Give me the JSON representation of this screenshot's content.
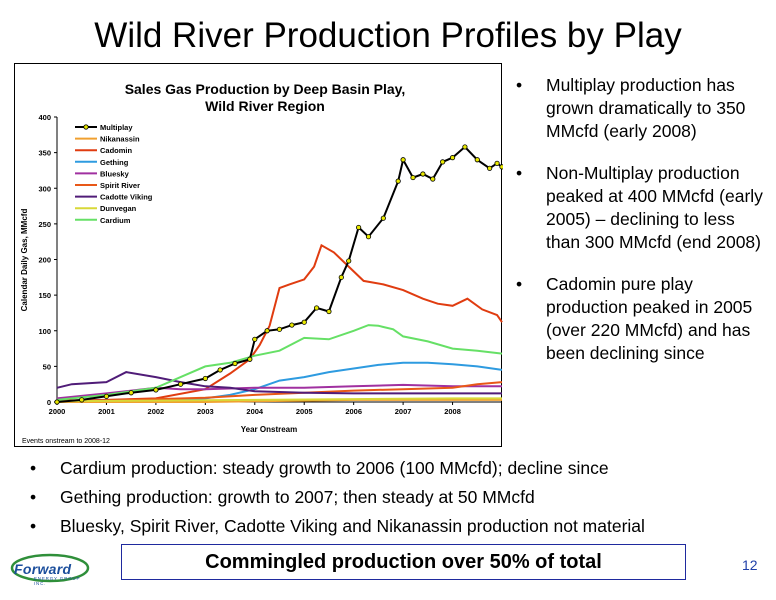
{
  "slide": {
    "title": "Wild River Production Profiles by Play",
    "right_bullets": [
      "Multiplay production has grown dramatically to 350 MMcfd (early 2008)",
      "Non-Multiplay production peaked at 400 MMcfd (early 2005) – declining to less than 300 MMcfd (end 2008)",
      "Cadomin pure play production peaked in 2005  (over 220 MMcfd) and has been declining since"
    ],
    "bottom_bullets": [
      "Cardium production: steady growth to 2006 (100 MMcfd); decline since",
      "Gething production: growth to 2007; then steady at 50 MMcfd",
      "Bluesky, Spirit River, Cadotte Viking and Nikanassin production not material"
    ],
    "callout": "Commingled production over 50% of total",
    "page_number": "12",
    "logo_text": "Forward",
    "logo_subtext": "ENERGY GROUP INC."
  },
  "chart_data": {
    "type": "line",
    "title_line1": "Sales Gas Production by Deep Basin Play,",
    "title_line2": "Wild River Region",
    "xlabel": "Year Onstream",
    "ylabel": "Calendar Daily Gas, MMcfd",
    "footnote": "Events onstream to 2008-12",
    "xlim": [
      2000,
      2009
    ],
    "ylim": [
      0,
      400
    ],
    "yticks": [
      0,
      50,
      100,
      150,
      200,
      250,
      300,
      350,
      400
    ],
    "xtick_labels": [
      "2000",
      "2001",
      "2002",
      "2003",
      "2004",
      "2005",
      "2006",
      "2007",
      "2008"
    ],
    "legend_position": "top-left",
    "series": [
      {
        "name": "Multiplay",
        "color": "#000000",
        "marker": "#e8e800",
        "x": [
          2000,
          2000.5,
          2001,
          2001.5,
          2002,
          2002.5,
          2003,
          2003.3,
          2003.6,
          2003.9,
          2004,
          2004.25,
          2004.5,
          2004.75,
          2005,
          2005.25,
          2005.5,
          2005.75,
          2005.9,
          2006.1,
          2006.3,
          2006.6,
          2006.9,
          2007,
          2007.2,
          2007.4,
          2007.6,
          2007.8,
          2008,
          2008.25,
          2008.5,
          2008.75,
          2008.9,
          2009
        ],
        "y": [
          0,
          3,
          8,
          13,
          17,
          25,
          33,
          45,
          54,
          60,
          88,
          100,
          102,
          108,
          112,
          132,
          127,
          175,
          198,
          245,
          232,
          258,
          310,
          340,
          315,
          320,
          313,
          337,
          343,
          358,
          340,
          328,
          335,
          330
        ]
      },
      {
        "name": "Nikanassin",
        "color": "#f0a030",
        "x": [
          2000,
          2003,
          2004,
          2005,
          2006,
          2007,
          2008,
          2009
        ],
        "y": [
          0,
          0,
          1,
          2,
          3,
          3,
          3,
          3
        ]
      },
      {
        "name": "Cadomin",
        "color": "#e03c10",
        "x": [
          2000,
          2001,
          2002,
          2003,
          2003.5,
          2003.9,
          2004.1,
          2004.3,
          2004.5,
          2004.7,
          2005,
          2005.2,
          2005.35,
          2005.6,
          2005.9,
          2006.2,
          2006.6,
          2007,
          2007.4,
          2007.7,
          2008,
          2008.3,
          2008.6,
          2008.9,
          2009
        ],
        "y": [
          2,
          3,
          5,
          18,
          40,
          60,
          80,
          107,
          160,
          165,
          172,
          190,
          220,
          210,
          190,
          170,
          165,
          157,
          145,
          138,
          135,
          145,
          130,
          122,
          112
        ]
      },
      {
        "name": "Gething",
        "color": "#2e9be0",
        "x": [
          2000,
          2001,
          2002,
          2003,
          2003.5,
          2004,
          2004.5,
          2005,
          2005.5,
          2006,
          2006.5,
          2007,
          2007.5,
          2008,
          2008.5,
          2009
        ],
        "y": [
          1,
          2,
          3,
          5,
          10,
          18,
          30,
          35,
          42,
          47,
          52,
          55,
          55,
          53,
          50,
          45
        ]
      },
      {
        "name": "Bluesky",
        "color": "#a030a0",
        "x": [
          2000,
          2001,
          2002,
          2002.5,
          2003,
          2004,
          2005,
          2006,
          2007,
          2008,
          2009
        ],
        "y": [
          5,
          12,
          20,
          18,
          18,
          20,
          20,
          22,
          24,
          22,
          22
        ]
      },
      {
        "name": "Spirit River",
        "color": "#e85818",
        "x": [
          2000,
          2001,
          2002,
          2003,
          2004,
          2005,
          2006,
          2007,
          2008,
          2008.5,
          2009
        ],
        "y": [
          1,
          2,
          4,
          6,
          10,
          13,
          16,
          18,
          20,
          25,
          28
        ]
      },
      {
        "name": "Cadotte Viking",
        "color": "#501c78",
        "x": [
          2000,
          2000.3,
          2001,
          2001.4,
          2002,
          2002.5,
          2003,
          2003.5,
          2004,
          2005,
          2006,
          2007,
          2008,
          2009
        ],
        "y": [
          20,
          25,
          28,
          42,
          35,
          28,
          22,
          20,
          15,
          13,
          12,
          12,
          12,
          12
        ]
      },
      {
        "name": "Dunvegan",
        "color": "#d8d838",
        "x": [
          2000,
          2002,
          2004,
          2006,
          2008,
          2009
        ],
        "y": [
          1,
          2,
          3,
          4,
          5,
          5
        ]
      },
      {
        "name": "Cardium",
        "color": "#66e066",
        "x": [
          2000,
          2001,
          2002,
          2002.5,
          2003,
          2003.5,
          2004,
          2004.5,
          2005,
          2005.5,
          2006,
          2006.3,
          2006.5,
          2006.8,
          2007,
          2007.5,
          2008,
          2008.5,
          2009
        ],
        "y": [
          3,
          10,
          20,
          35,
          50,
          55,
          65,
          72,
          90,
          88,
          100,
          108,
          107,
          102,
          92,
          85,
          75,
          72,
          68
        ]
      }
    ]
  }
}
